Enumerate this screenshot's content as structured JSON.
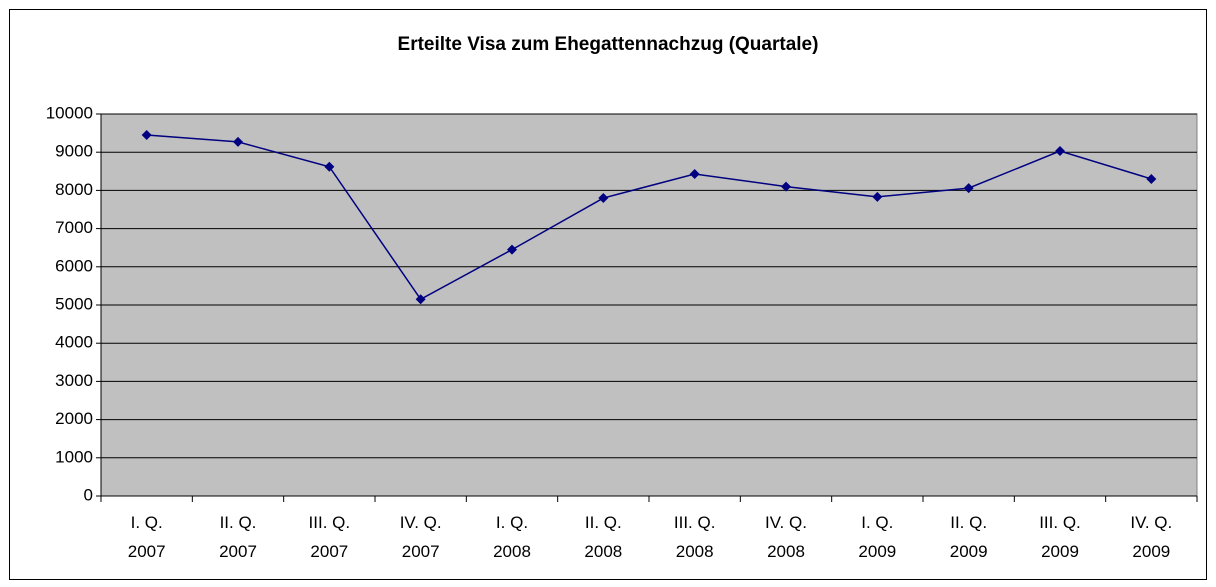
{
  "chart_data": {
    "type": "line",
    "title": "Erteilte Visa zum Ehegattennachzug (Quartale)",
    "categories": [
      "I. Q.\n2007",
      "II. Q.\n2007",
      "III. Q.\n2007",
      "IV. Q.\n2007",
      "I. Q.\n2008",
      "II. Q.\n2008",
      "III. Q.\n2008",
      "IV. Q.\n2008",
      "I. Q.\n2009",
      "II. Q.\n2009",
      "III. Q.\n2009",
      "IV. Q.\n2009"
    ],
    "values": [
      9450,
      9270,
      8620,
      5150,
      6450,
      7800,
      8430,
      8100,
      7830,
      8060,
      9030,
      8300
    ],
    "color": "#000080",
    "ylim": [
      0,
      10000
    ],
    "yticks": [
      0,
      1000,
      2000,
      3000,
      4000,
      5000,
      6000,
      7000,
      8000,
      9000,
      10000
    ],
    "grid": true
  }
}
